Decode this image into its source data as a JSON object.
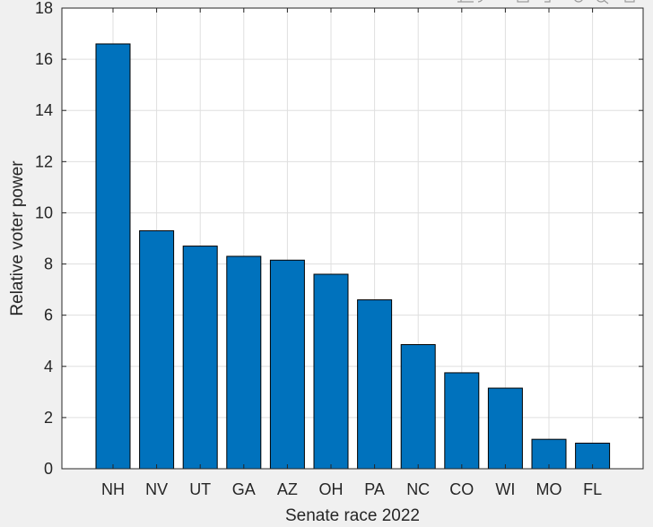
{
  "chart_data": {
    "type": "bar",
    "title": "",
    "xlabel": "Senate race 2022",
    "ylabel": "Relative voter power",
    "categories": [
      "NH",
      "NV",
      "UT",
      "GA",
      "AZ",
      "OH",
      "PA",
      "NC",
      "CO",
      "WI",
      "MO",
      "FL"
    ],
    "values": [
      16.6,
      9.3,
      8.7,
      8.3,
      8.15,
      7.6,
      6.6,
      4.85,
      3.75,
      3.15,
      1.15,
      1.0
    ],
    "ylim": [
      0,
      18
    ],
    "yticks": [
      0,
      2,
      4,
      6,
      8,
      10,
      12,
      14,
      16,
      18
    ],
    "grid": true,
    "bar_color": "#0072BD"
  },
  "toolbar": {
    "icons": [
      "export-icon",
      "brush-icon",
      "datatip-icon",
      "rotate-icon",
      "zoom-in-icon",
      "zoom-out-icon",
      "home-icon"
    ]
  }
}
